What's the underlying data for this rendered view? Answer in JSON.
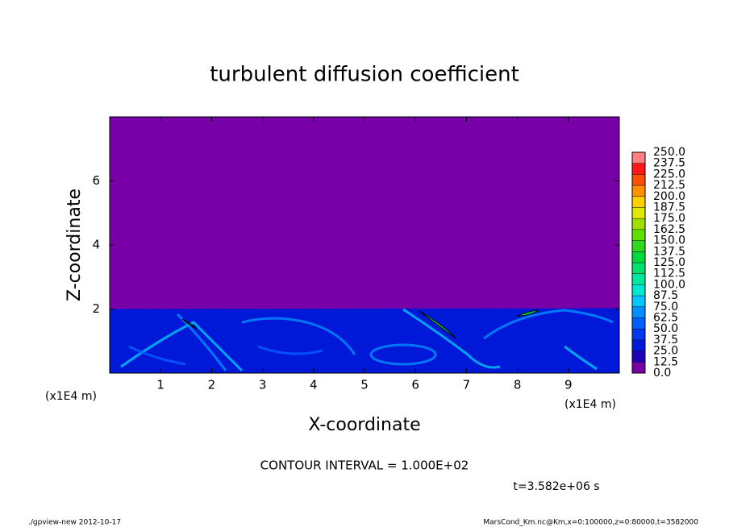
{
  "chart_data": {
    "type": "contour",
    "title": "turbulent diffusion coefficient",
    "x_label": "X-coordinate",
    "y_label": "Z-coordinate",
    "x_unit": "(x1E4 m)",
    "y_unit": "(x1E4 m)",
    "xlim": [
      0,
      10
    ],
    "xticks": [
      1,
      2,
      3,
      4,
      5,
      6,
      7,
      8,
      9
    ],
    "ylim": [
      0,
      8
    ],
    "yticks": [
      2,
      4,
      6
    ],
    "levels": [
      {
        "value": 0,
        "label": "0.0"
      },
      12.5,
      {
        "value": 25,
        "label": "25.0"
      },
      37.5,
      {
        "value": 50,
        "label": "50.0"
      },
      62.5,
      {
        "value": 75,
        "label": "75.0"
      },
      87.5,
      {
        "value": 100,
        "label": "100.0"
      },
      112.5,
      {
        "value": 125,
        "label": "125.0"
      },
      137.5,
      {
        "value": 150,
        "label": "150.0"
      },
      162.5,
      {
        "value": 175,
        "label": "175.0"
      },
      187.5,
      {
        "value": 200,
        "label": "200.0"
      },
      212.5,
      {
        "value": 225,
        "label": "225.0"
      },
      237.5,
      {
        "value": 250,
        "label": "250.0"
      }
    ],
    "level_colors": [
      "#7800a8",
      "#2000b8",
      "#0018d8",
      "#0038f0",
      "#0060ff",
      "#0090ff",
      "#00c8ff",
      "#00e8d0",
      "#00e8a0",
      "#00e070",
      "#00d840",
      "#30d820",
      "#60e000",
      "#a0e000",
      "#e0e800",
      "#ffd000",
      "#ff9000",
      "#ff5000",
      "#ff1818",
      "#ff8080"
    ],
    "contour_interval": "CONTOUR INTERVAL = 1.000E+02",
    "time": "t=3.582e+06 s",
    "footer_left": "./gpview-new  2012-10-17",
    "footer_right": "MarsCond_Km.nc@Km,x=0:100000,z=0:80000,t=3582000"
  }
}
